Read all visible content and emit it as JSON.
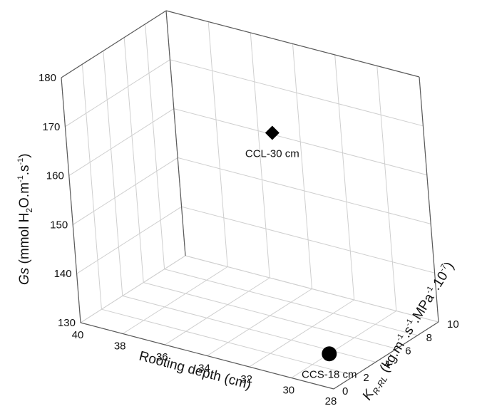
{
  "chart_data": {
    "type": "scatter",
    "axes": {
      "x": {
        "label": "Rooting depth (cm)",
        "range": [
          40,
          28
        ],
        "ticks": [
          40,
          38,
          36,
          34,
          32,
          30,
          28
        ]
      },
      "y": {
        "label_parts": [
          "K",
          "R-RL",
          " (kg.m",
          "-1",
          ".s",
          "-1",
          ".MPa",
          "-1",
          ".10",
          "-7",
          ")"
        ],
        "range": [
          0,
          10
        ],
        "ticks": [
          0,
          2,
          4,
          6,
          8,
          10
        ]
      },
      "z": {
        "label_parts": [
          "Gs",
          " (mmol H",
          "2",
          "O.m",
          "-1",
          ".s",
          "-1",
          ")"
        ],
        "range": [
          130,
          180
        ],
        "ticks": [
          130,
          140,
          150,
          160,
          170,
          180
        ]
      }
    },
    "points": [
      {
        "label": "CCL-30 cm",
        "x": 30,
        "y": 0,
        "z": 180,
        "marker": "diamond"
      },
      {
        "label": "CCS-18 cm",
        "x": 30,
        "y": 3.6,
        "z": 130,
        "marker": "circle"
      }
    ],
    "grid": true
  },
  "colors": {
    "grid": "#cfcfcf",
    "axis": "#5a5a5a",
    "marker": "#000000",
    "text": "#111111"
  }
}
